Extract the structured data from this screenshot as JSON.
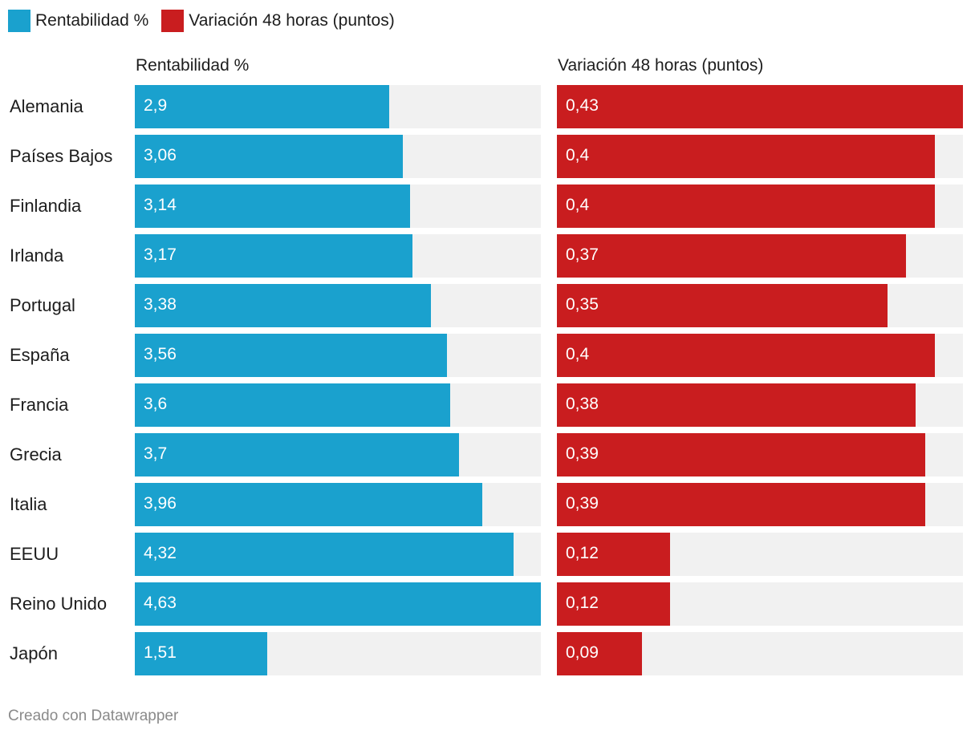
{
  "legend": [
    {
      "label": "Rentabilidad %",
      "color": "#1aa1ce"
    },
    {
      "label": "Variación 48 horas (puntos)",
      "color": "#c91d1f"
    }
  ],
  "footer": "Creado con Datawrapper",
  "chart_data": {
    "type": "bar",
    "orientation": "horizontal",
    "legend_position": "top-left",
    "grid": false,
    "categories": [
      "Alemania",
      "Países Bajos",
      "Finlandia",
      "Irlanda",
      "Portugal",
      "España",
      "Francia",
      "Grecia",
      "Italia",
      "EEUU",
      "Reino Unido",
      "Japón"
    ],
    "series": [
      {
        "name": "Rentabilidad %",
        "color": "#1aa1ce",
        "xlim": [
          0,
          4.63
        ],
        "values": [
          2.9,
          3.06,
          3.14,
          3.17,
          3.38,
          3.56,
          3.6,
          3.7,
          3.96,
          4.32,
          4.63,
          1.51
        ],
        "labels": [
          "2,9",
          "3,06",
          "3,14",
          "3,17",
          "3,38",
          "3,56",
          "3,6",
          "3,7",
          "3,96",
          "4,32",
          "4,63",
          "1,51"
        ]
      },
      {
        "name": "Variación 48 horas (puntos)",
        "color": "#c91d1f",
        "xlim": [
          0,
          0.43
        ],
        "values": [
          0.43,
          0.4,
          0.4,
          0.37,
          0.35,
          0.4,
          0.38,
          0.39,
          0.39,
          0.12,
          0.12,
          0.09
        ],
        "labels": [
          "0,43",
          "0,4",
          "0,4",
          "0,37",
          "0,35",
          "0,4",
          "0,38",
          "0,39",
          "0,39",
          "0,12",
          "0,12",
          "0,09"
        ]
      }
    ]
  }
}
